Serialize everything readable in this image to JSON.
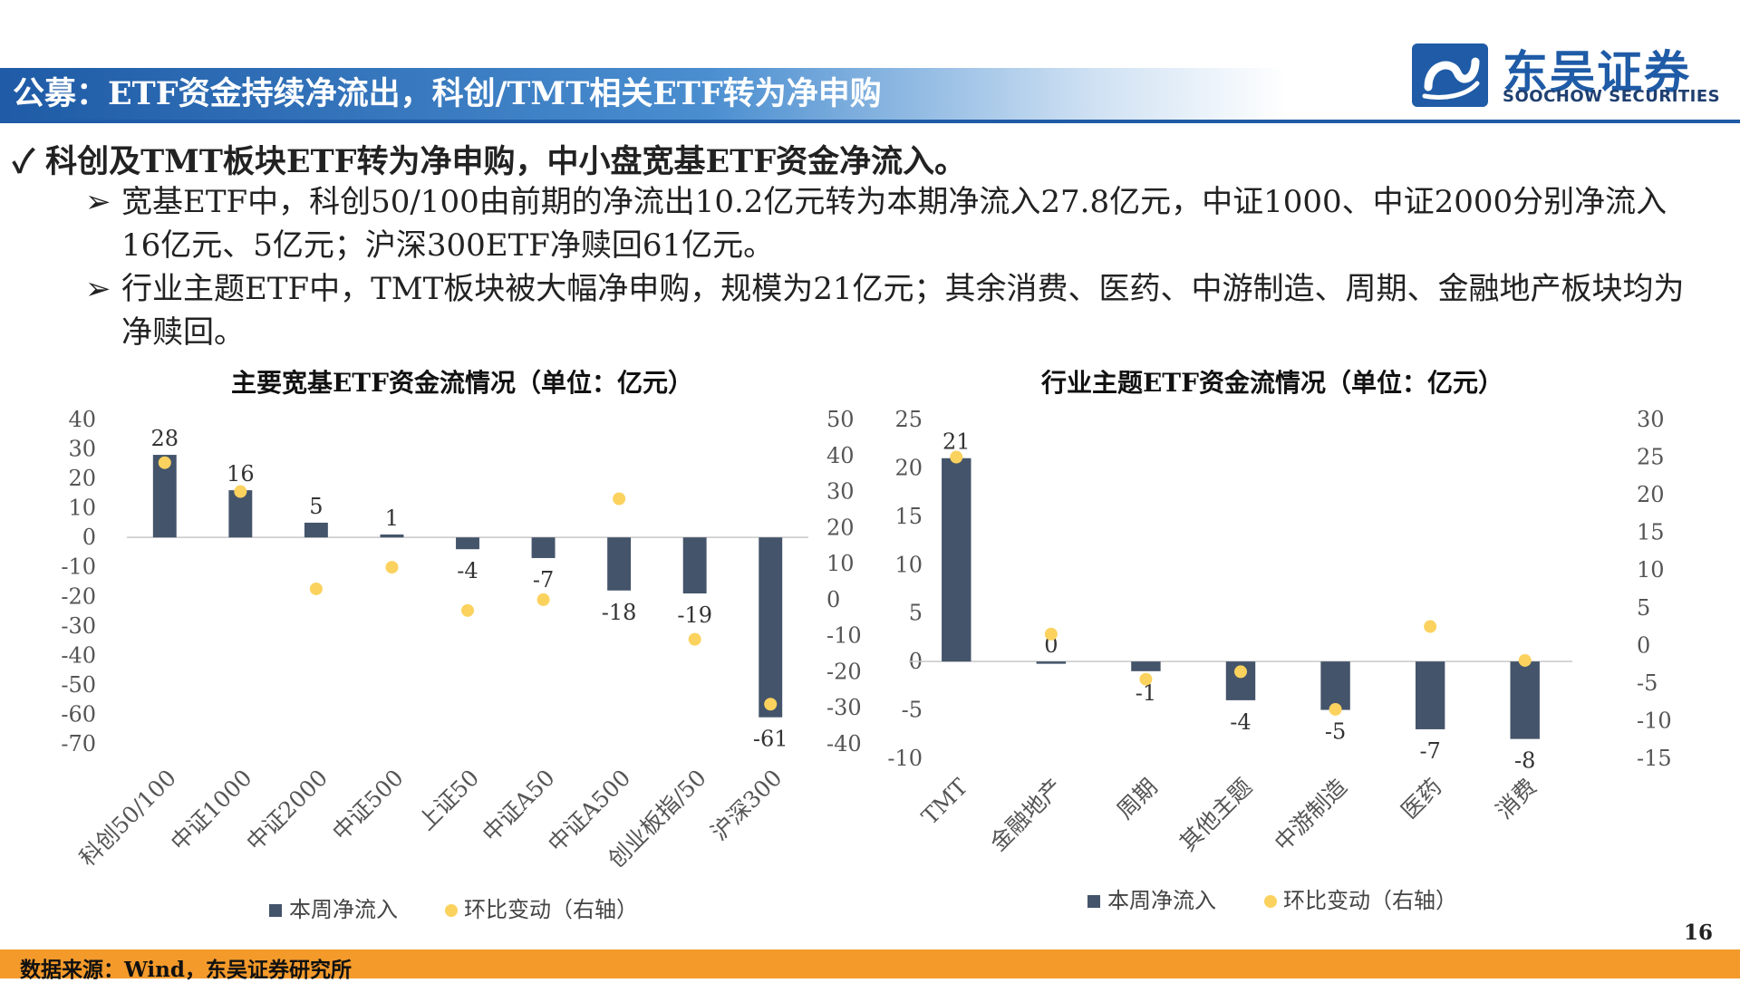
{
  "header": {
    "title": "公募：ETF资金持续净流出，科创/TMT相关ETF转为净申购",
    "logo_cn": "东吴证券",
    "logo_en": "SOOCHOW SECURITIES"
  },
  "bullets": {
    "main_mark": "✓",
    "main": "科创及TMT板块ETF转为净申购，中小盘宽基ETF资金净流入。",
    "sub_mark": "➢",
    "sub1": "宽基ETF中，科创50/100由前期的净流出10.2亿元转为本期净流入27.8亿元，中证1000、中证2000分别净流入16亿元、5亿元；沪深300ETF净赎回61亿元。",
    "sub2": "行业主题ETF中，TMT板块被大幅净申购，规模为21亿元；其余消费、医药、中游制造、周期、金融地产板块均为净赎回。"
  },
  "chart_data": [
    {
      "type": "bar",
      "title": "主要宽基ETF资金流情况（单位：亿元）",
      "categories": [
        "科创50/100",
        "中证1000",
        "中证2000",
        "中证500",
        "上证50",
        "中证A50",
        "中证A500",
        "创业板指/50",
        "沪深300"
      ],
      "series": [
        {
          "name": "本周净流入",
          "type": "bar",
          "axis": "left",
          "color": "#44546a",
          "values": [
            28,
            16,
            5,
            1,
            -4,
            -7,
            -18,
            -19,
            -61
          ]
        },
        {
          "name": "环比变动（右轴）",
          "type": "scatter",
          "axis": "right",
          "color": "#fbd25e",
          "values": [
            38,
            30,
            3,
            9,
            -3,
            0,
            28,
            -11,
            -29
          ]
        }
      ],
      "ylim_left": [
        -70,
        40
      ],
      "yticks_left": [
        40,
        30,
        20,
        10,
        0,
        -10,
        -20,
        -30,
        -40,
        -50,
        -60,
        -70
      ],
      "ylim_right": [
        -40,
        50
      ],
      "yticks_right": [
        50,
        40,
        30,
        20,
        10,
        0,
        -10,
        -20,
        -30,
        -40
      ],
      "legend": "bottom"
    },
    {
      "type": "bar",
      "title": "行业主题ETF资金流情况（单位：亿元）",
      "categories": [
        "TMT",
        "金融地产",
        "周期",
        "其他主题",
        "中游制造",
        "医药",
        "消费"
      ],
      "series": [
        {
          "name": "本周净流入",
          "type": "bar",
          "axis": "left",
          "color": "#44546a",
          "values": [
            21,
            0,
            -1,
            -4,
            -5,
            -7,
            -8
          ]
        },
        {
          "name": "环比变动（右轴）",
          "type": "scatter",
          "axis": "right",
          "color": "#fbd25e",
          "values": [
            25,
            1.5,
            -4.5,
            -3.5,
            -8.5,
            2.5,
            -2
          ]
        }
      ],
      "ylim_left": [
        -10,
        25
      ],
      "yticks_left": [
        25,
        20,
        15,
        10,
        5,
        0,
        -5,
        -10
      ],
      "ylim_right": [
        -15,
        30
      ],
      "yticks_right": [
        30,
        25,
        20,
        15,
        10,
        5,
        0,
        -5,
        -10,
        -15
      ],
      "legend": "bottom"
    }
  ],
  "footer": {
    "source": "数据来源：Wind，东吴证券研究所",
    "page_number": "16"
  }
}
